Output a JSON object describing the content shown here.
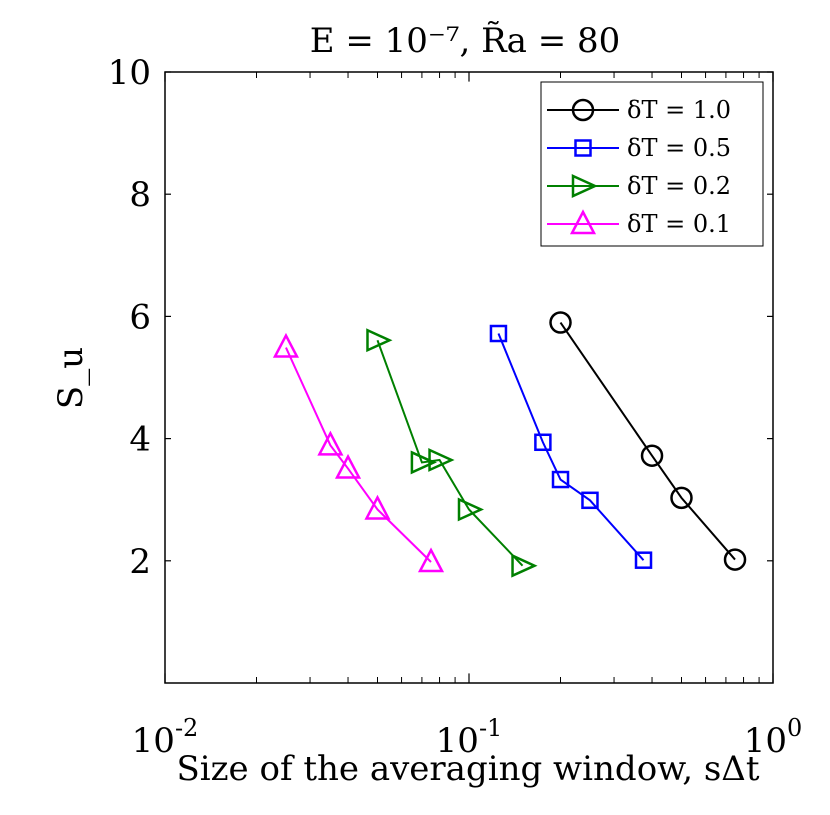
{
  "chart_data": {
    "type": "line",
    "title": "E = 10⁻⁷, R̃a = 80",
    "xlabel": "Size of the averaging window, sΔt",
    "ylabel": "S_u",
    "xscale": "log",
    "xlim": [
      0.01,
      1
    ],
    "ylim": [
      0,
      10
    ],
    "xticks": [
      {
        "value": 0.01,
        "base": "10",
        "exp": "-2"
      },
      {
        "value": 0.1,
        "base": "10",
        "exp": "-1"
      },
      {
        "value": 1,
        "base": "10",
        "exp": "0"
      }
    ],
    "yticks": [
      {
        "value": 2,
        "label": "2"
      },
      {
        "value": 4,
        "label": "4"
      },
      {
        "value": 6,
        "label": "6"
      },
      {
        "value": 8,
        "label": "8"
      },
      {
        "value": 10,
        "label": "10"
      }
    ],
    "legend_position": "top-right",
    "series": [
      {
        "name": "δT = 1.0",
        "color": "#000000",
        "marker": "circle",
        "x": [
          0.2,
          0.4,
          0.5,
          0.75
        ],
        "y": [
          5.9,
          3.72,
          3.03,
          2.02
        ]
      },
      {
        "name": "δT = 0.5",
        "color": "#0000ff",
        "marker": "square",
        "x": [
          0.125,
          0.175,
          0.2,
          0.25,
          0.375
        ],
        "y": [
          5.72,
          3.94,
          3.33,
          2.99,
          2.01
        ]
      },
      {
        "name": "δT = 0.2",
        "color": "#008000",
        "marker": "triangle-right",
        "x": [
          0.05,
          0.07,
          0.08,
          0.1,
          0.15
        ],
        "y": [
          5.61,
          3.61,
          3.65,
          2.84,
          1.92
        ]
      },
      {
        "name": "δT = 0.1",
        "color": "#ff00ff",
        "marker": "triangle-up",
        "x": [
          0.025,
          0.035,
          0.04,
          0.05,
          0.075
        ],
        "y": [
          5.49,
          3.89,
          3.51,
          2.84,
          1.98
        ]
      }
    ]
  }
}
